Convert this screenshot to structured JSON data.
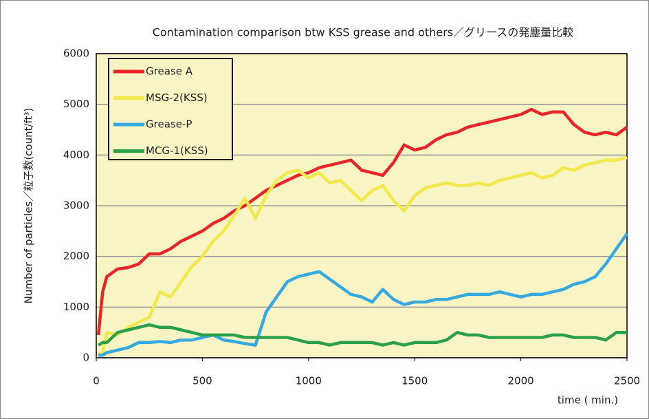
{
  "chart_data": {
    "type": "line",
    "title": "Contamination comparison btw KSS grease and others／グリースの発塵量比較",
    "y_label": "Number of particles／粒子数(count/ft³)",
    "x_label": "time ( min.)",
    "x": [
      10,
      30,
      50,
      100,
      150,
      200,
      250,
      300,
      350,
      400,
      450,
      500,
      550,
      600,
      650,
      700,
      750,
      800,
      850,
      900,
      950,
      1000,
      1050,
      1100,
      1150,
      1200,
      1250,
      1300,
      1350,
      1400,
      1450,
      1500,
      1550,
      1600,
      1650,
      1700,
      1750,
      1800,
      1850,
      1900,
      1950,
      2000,
      2050,
      2100,
      2150,
      2200,
      2250,
      2300,
      2350,
      2400,
      2450,
      2500
    ],
    "series": [
      {
        "name": "Grease A",
        "color": "#e8262a",
        "values": [
          450,
          1300,
          1600,
          1750,
          1780,
          1850,
          2050,
          2050,
          2150,
          2300,
          2400,
          2500,
          2650,
          2750,
          2900,
          3000,
          3150,
          3300,
          3400,
          3500,
          3600,
          3650,
          3750,
          3800,
          3850,
          3900,
          3700,
          3650,
          3600,
          3850,
          4200,
          4100,
          4150,
          4300,
          4400,
          4450,
          4550,
          4600,
          4650,
          4700,
          4750,
          4800,
          4900,
          4800,
          4850,
          4850,
          4600,
          4450,
          4400,
          4450,
          4400,
          4550
        ]
      },
      {
        "name": "MSG-2(KSS)",
        "color": "#f2ea4a",
        "values": [
          50,
          100,
          500,
          450,
          600,
          700,
          800,
          1300,
          1200,
          1500,
          1800,
          2000,
          2300,
          2500,
          2800,
          3150,
          2750,
          3200,
          3500,
          3650,
          3700,
          3550,
          3650,
          3450,
          3500,
          3300,
          3100,
          3300,
          3400,
          3100,
          2900,
          3200,
          3350,
          3400,
          3450,
          3400,
          3400,
          3450,
          3400,
          3500,
          3550,
          3600,
          3650,
          3550,
          3600,
          3750,
          3700,
          3800,
          3850,
          3900,
          3900,
          3950
        ]
      },
      {
        "name": "Grease-P",
        "color": "#36a9e1",
        "values": [
          50,
          50,
          100,
          150,
          200,
          300,
          300,
          320,
          300,
          350,
          350,
          400,
          450,
          350,
          320,
          280,
          250,
          900,
          1200,
          1500,
          1600,
          1650,
          1700,
          1550,
          1400,
          1250,
          1200,
          1100,
          1350,
          1150,
          1050,
          1100,
          1100,
          1150,
          1150,
          1200,
          1250,
          1250,
          1250,
          1300,
          1250,
          1200,
          1250,
          1250,
          1300,
          1350,
          1450,
          1500,
          1600,
          1850,
          2150,
          2450
        ]
      },
      {
        "name": "MCG-1(KSS)",
        "color": "#2aa04a",
        "values": [
          250,
          300,
          300,
          500,
          550,
          600,
          650,
          600,
          600,
          550,
          500,
          450,
          450,
          450,
          450,
          400,
          400,
          400,
          400,
          400,
          350,
          300,
          300,
          250,
          300,
          300,
          300,
          300,
          250,
          300,
          250,
          300,
          300,
          300,
          350,
          500,
          450,
          450,
          400,
          400,
          400,
          400,
          400,
          400,
          450,
          450,
          400,
          400,
          400,
          350,
          500,
          500
        ]
      }
    ],
    "xlim": [
      0,
      2500
    ],
    "xticks": [
      0,
      500,
      1000,
      1500,
      2000,
      2500
    ],
    "ylim": [
      0,
      6000
    ],
    "yticks": [
      0,
      1000,
      2000,
      3000,
      4000,
      5000,
      6000
    ],
    "grid": true,
    "legend": "upper left"
  }
}
